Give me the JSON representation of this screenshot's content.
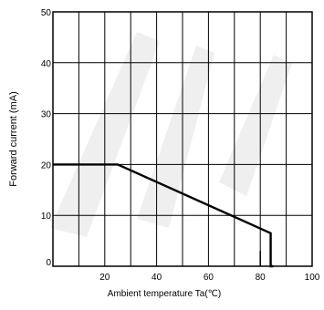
{
  "chart_data": {
    "type": "line",
    "title": "",
    "xlabel": "Ambient temperature Ta(℃)",
    "ylabel": "Forward current (mA)",
    "xlim": [
      0,
      100
    ],
    "ylim": [
      0,
      50
    ],
    "x_ticks": [
      {
        "value": 20,
        "label": "20"
      },
      {
        "value": 40,
        "label": "40"
      },
      {
        "value": 60,
        "label": "60"
      },
      {
        "value": 80,
        "label": "80"
      },
      {
        "value": 100,
        "label": "100"
      }
    ],
    "y_ticks": [
      {
        "value": 0,
        "label": "0"
      },
      {
        "value": 10,
        "label": "10"
      },
      {
        "value": 20,
        "label": "20"
      },
      {
        "value": 30,
        "label": "30"
      },
      {
        "value": 40,
        "label": "40"
      },
      {
        "value": 50,
        "label": "50"
      }
    ],
    "grid": true,
    "series": [
      {
        "x": [
          0,
          25,
          84,
          84,
          85
        ],
        "y": [
          20,
          20,
          6.5,
          0,
          0
        ]
      }
    ],
    "vertical_markers": [
      {
        "x": 80,
        "y_from": 0,
        "y_to": 3
      }
    ]
  }
}
